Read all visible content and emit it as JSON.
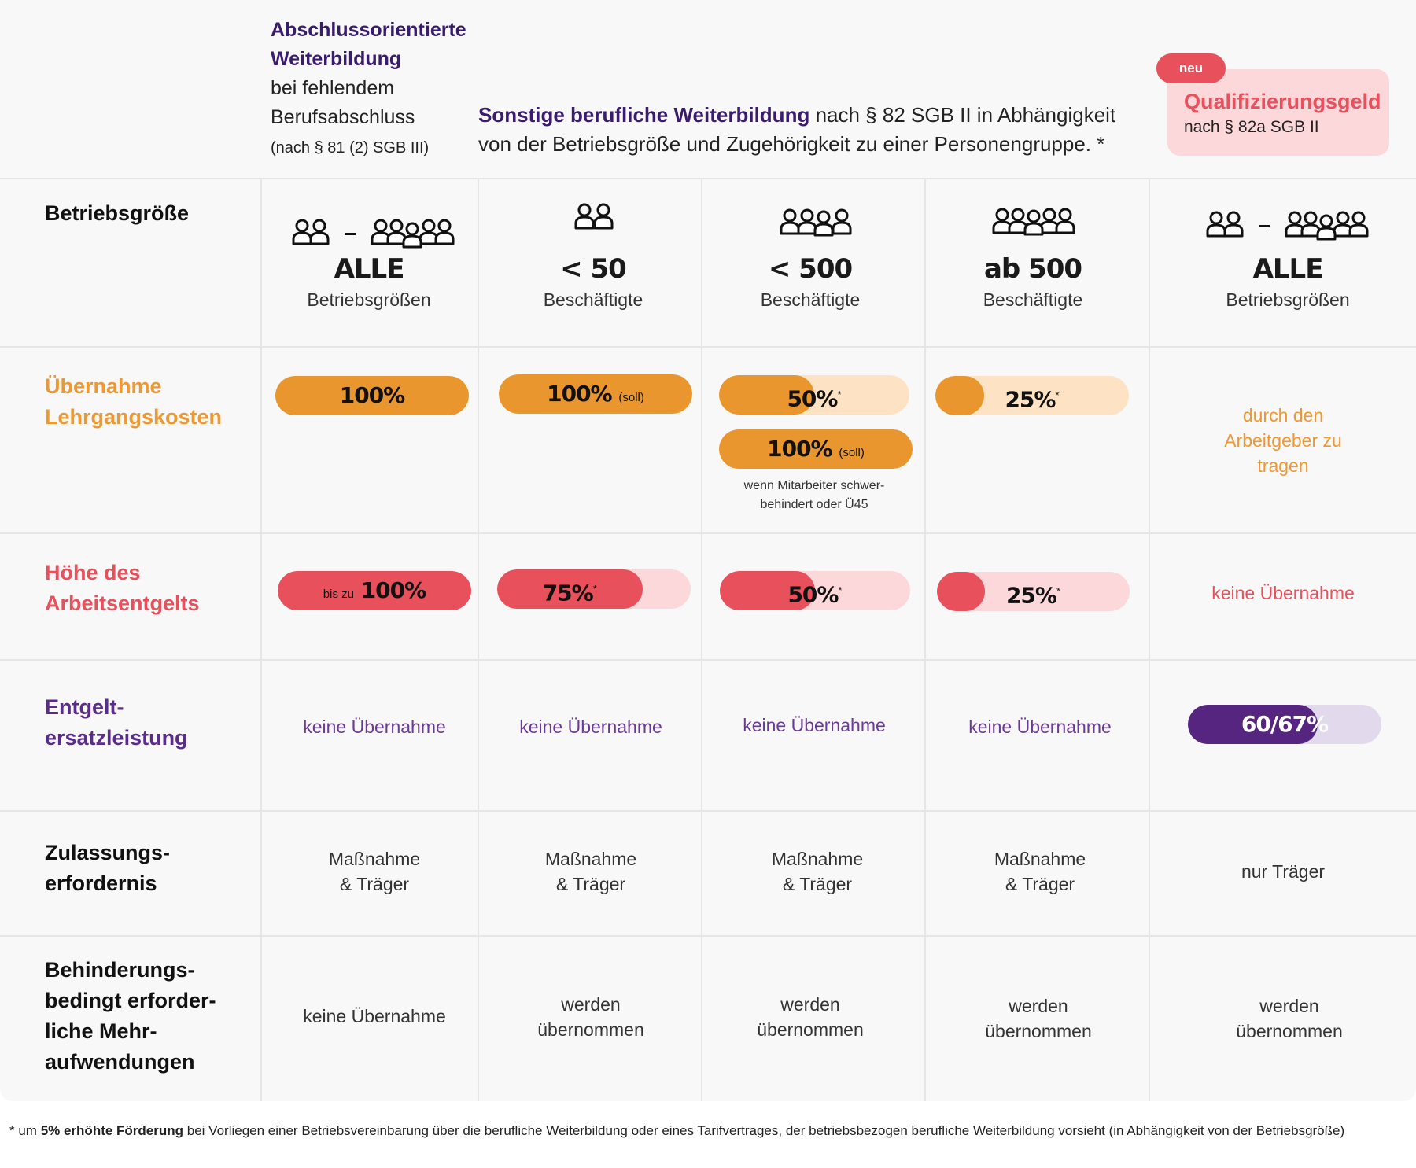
{
  "header": {
    "col1": {
      "title_line1": "Abschlussorientierte",
      "title_line2": "Weiterbildung",
      "line3": "bei fehlendem",
      "line4": "Berufsabschluss",
      "law": "(nach § 81 (2) SGB III)"
    },
    "middle": {
      "bold": "Sonstige berufliche Weiterbildung",
      "line1_rest": " nach § 82 SGB II in Abhängigkeit",
      "line2": "von der Betriebsgröße und Zugehörigkeit zu einer Personengruppe. *"
    },
    "qual": {
      "badge": "neu",
      "title": "Qualifizierungsgeld",
      "sub": "nach § 82a SGB II"
    }
  },
  "rows": {
    "betriebsgroesse": "Betriebsgröße",
    "lehrgang": {
      "line1": "Übernahme",
      "line2": "Lehrgangskosten"
    },
    "entgelt": {
      "line1": "Höhe des",
      "line2": "Arbeitsentgelts"
    },
    "ersatz": {
      "line1": "Entgelt-",
      "line2": "ersatzleistung"
    },
    "zulassung": {
      "line1": "Zulassungs-",
      "line2": "erfordernis"
    },
    "behinderung": {
      "line1": "Behinderungs-",
      "line2": "bedingt erforder-",
      "line3": "liche Mehr-",
      "line4": "aufwendungen"
    }
  },
  "columns": [
    {
      "big": "ALLE",
      "small": "Betriebsgrößen",
      "dash": "–"
    },
    {
      "big": "< 50",
      "small": "Beschäftigte"
    },
    {
      "big": "< 500",
      "small": "Beschäftigte"
    },
    {
      "big": "ab 500",
      "small": "Beschäftigte"
    },
    {
      "big": "ALLE",
      "small": "Betriebsgrößen",
      "dash": "–"
    }
  ],
  "lehrgang_values": [
    {
      "label": "100%",
      "fill": 1.0
    },
    {
      "label": "100%",
      "suffix": "(soll)",
      "fill": 1.0
    },
    {
      "label": "50%",
      "star": "*",
      "fill": 0.5
    },
    {
      "label": "25%",
      "star": "*",
      "fill": 0.25
    },
    {
      "text_line1": "durch den",
      "text_line2": "Arbeitgeber zu",
      "text_line3": "tragen"
    }
  ],
  "lehrgang_extra": {
    "label": "100%",
    "suffix": "(soll)",
    "fill": 1.0,
    "note_line1": "wenn Mitarbeiter schwer-",
    "note_line2": "behindert oder Ü45"
  },
  "entgelt_values": [
    {
      "prefix": "bis zu",
      "label": "100%",
      "fill": 1.0
    },
    {
      "label": "75%",
      "star": "*",
      "fill": 0.75
    },
    {
      "label": "50%",
      "star": "*",
      "fill": 0.5
    },
    {
      "label": "25%",
      "star": "*",
      "fill": 0.25
    },
    {
      "text": "keine Übernahme"
    }
  ],
  "ersatz_values": [
    "keine Übernahme",
    "keine Übernahme",
    "keine Übernahme",
    "keine Übernahme"
  ],
  "ersatz_last": {
    "label": "60/67%",
    "fill": 0.67
  },
  "zulassung_values": [
    {
      "line1": "Maßnahme",
      "line2": "& Träger"
    },
    {
      "line1": "Maßnahme",
      "line2": "& Träger"
    },
    {
      "line1": "Maßnahme",
      "line2": "& Träger"
    },
    {
      "line1": "Maßnahme",
      "line2": "& Träger"
    },
    {
      "line1": "nur Träger",
      "line2": ""
    }
  ],
  "behinderung_values": [
    {
      "line1": "keine Übernahme",
      "line2": ""
    },
    {
      "line1": "werden",
      "line2": "übernommen"
    },
    {
      "line1": "werden",
      "line2": "übernommen"
    },
    {
      "line1": "werden",
      "line2": "übernommen"
    },
    {
      "line1": "werden",
      "line2": "übernommen"
    }
  ],
  "footnote": {
    "star": "* um ",
    "bold": "5% erhöhte Förderung",
    "rest": " bei Vorliegen einer Betriebsvereinbarung über die berufliche Weiterbildung oder eines Tarifvertrages, der betriebsbezogen berufliche Weiterbildung vorsieht (in Abhängigkeit von der Betriebsgröße)"
  },
  "colors": {
    "orange": "#e9962f",
    "orange_light": "#fde3c3",
    "red": "#e8505b",
    "red_light": "#fdd8db",
    "purple": "#56257f",
    "purple_light": "#e2d9ec",
    "header_purple": "#3a1c6e"
  },
  "icons": [
    "people-group-icon"
  ]
}
